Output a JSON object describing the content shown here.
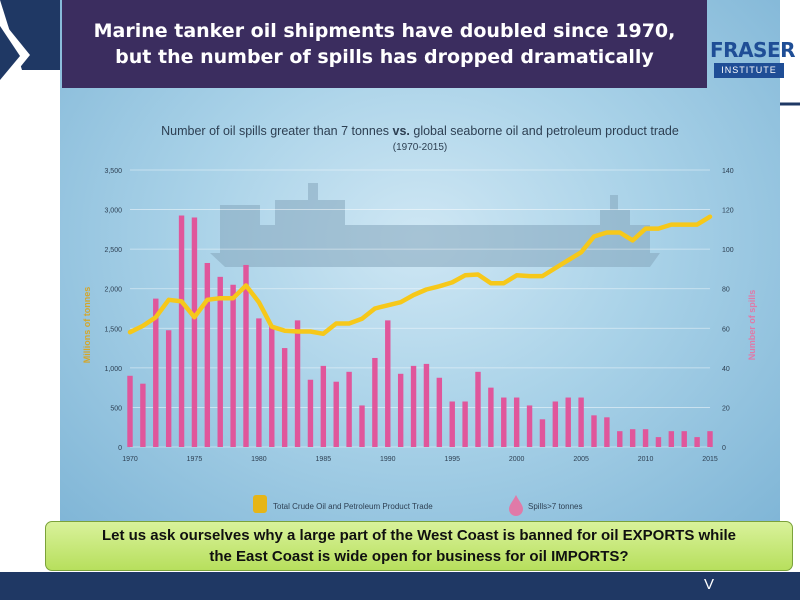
{
  "title": {
    "line1": "Marine tanker oil shipments have doubled since 1970,",
    "line2": "but the number of spills has dropped dramatically"
  },
  "logo": {
    "top": "FRASER",
    "bottom": "INSTITUTE"
  },
  "subtitle": {
    "part1": "Number of oil spills greater than 7 tonnes ",
    "vs": "vs.",
    "part2": " global seaborne oil and petroleum product trade",
    "years": "(1970-2015)"
  },
  "callout": {
    "line1": "Let us ask ourselves why a large part of the West Coast is banned for oil EXPORTS while",
    "line2": "the East Coast is wide open for business for oil IMPORTS?"
  },
  "footer": {
    "mark": "V"
  },
  "colors": {
    "bars": "#e0569b",
    "line": "#f6c81a",
    "left_axis_label": "#d4a62a",
    "right_axis_label": "#e07aa8",
    "title_banner": "#3b2d5f",
    "callout": "#c4e67a",
    "footer": "#1f3864"
  },
  "chart_data": {
    "type": "bar+line",
    "x": [
      1970,
      1971,
      1972,
      1973,
      1974,
      1975,
      1976,
      1977,
      1978,
      1979,
      1980,
      1981,
      1982,
      1983,
      1984,
      1985,
      1986,
      1987,
      1988,
      1989,
      1990,
      1991,
      1992,
      1993,
      1994,
      1995,
      1996,
      1997,
      1998,
      1999,
      2000,
      2001,
      2002,
      2003,
      2004,
      2005,
      2006,
      2007,
      2008,
      2009,
      2010,
      2011,
      2012,
      2013,
      2014,
      2015
    ],
    "x_ticks": [
      "1970",
      "1975",
      "1980",
      "1985",
      "1990",
      "1995",
      "2000",
      "2005",
      "2010",
      "2015"
    ],
    "series": [
      {
        "name": "Spills>7 tonnes",
        "axis": "right",
        "kind": "bar",
        "values": [
          36,
          32,
          75,
          59,
          117,
          116,
          93,
          86,
          82,
          92,
          65,
          61,
          50,
          64,
          34,
          41,
          33,
          38,
          21,
          45,
          64,
          37,
          41,
          42,
          35,
          23,
          23,
          38,
          30,
          25,
          25,
          21,
          14,
          23,
          25,
          25,
          16,
          15,
          8,
          9,
          9,
          5,
          8,
          8,
          5,
          8
        ]
      },
      {
        "name": "Total Crude Oil and Petroleum Product Trade",
        "axis": "left",
        "kind": "line",
        "values": [
          1450,
          1530,
          1640,
          1860,
          1840,
          1640,
          1860,
          1880,
          1880,
          2040,
          1830,
          1520,
          1470,
          1460,
          1460,
          1430,
          1560,
          1560,
          1620,
          1750,
          1790,
          1830,
          1920,
          1990,
          2030,
          2080,
          2170,
          2180,
          2070,
          2070,
          2170,
          2160,
          2160,
          2260,
          2360,
          2460,
          2660,
          2710,
          2710,
          2610,
          2760,
          2760,
          2810,
          2810,
          2810,
          2910
        ]
      }
    ],
    "y_left": {
      "label": "Millions of tonnes",
      "range": [
        0,
        3500
      ],
      "ticks": [
        "0",
        "500",
        "1,000",
        "1,500",
        "2,000",
        "2,500",
        "3,000",
        "3,500"
      ]
    },
    "y_right": {
      "label": "Number of spills",
      "range": [
        0,
        140
      ],
      "ticks": [
        "0",
        "20",
        "40",
        "60",
        "80",
        "100",
        "120",
        "140"
      ]
    },
    "legend": {
      "position": "bottom"
    }
  }
}
